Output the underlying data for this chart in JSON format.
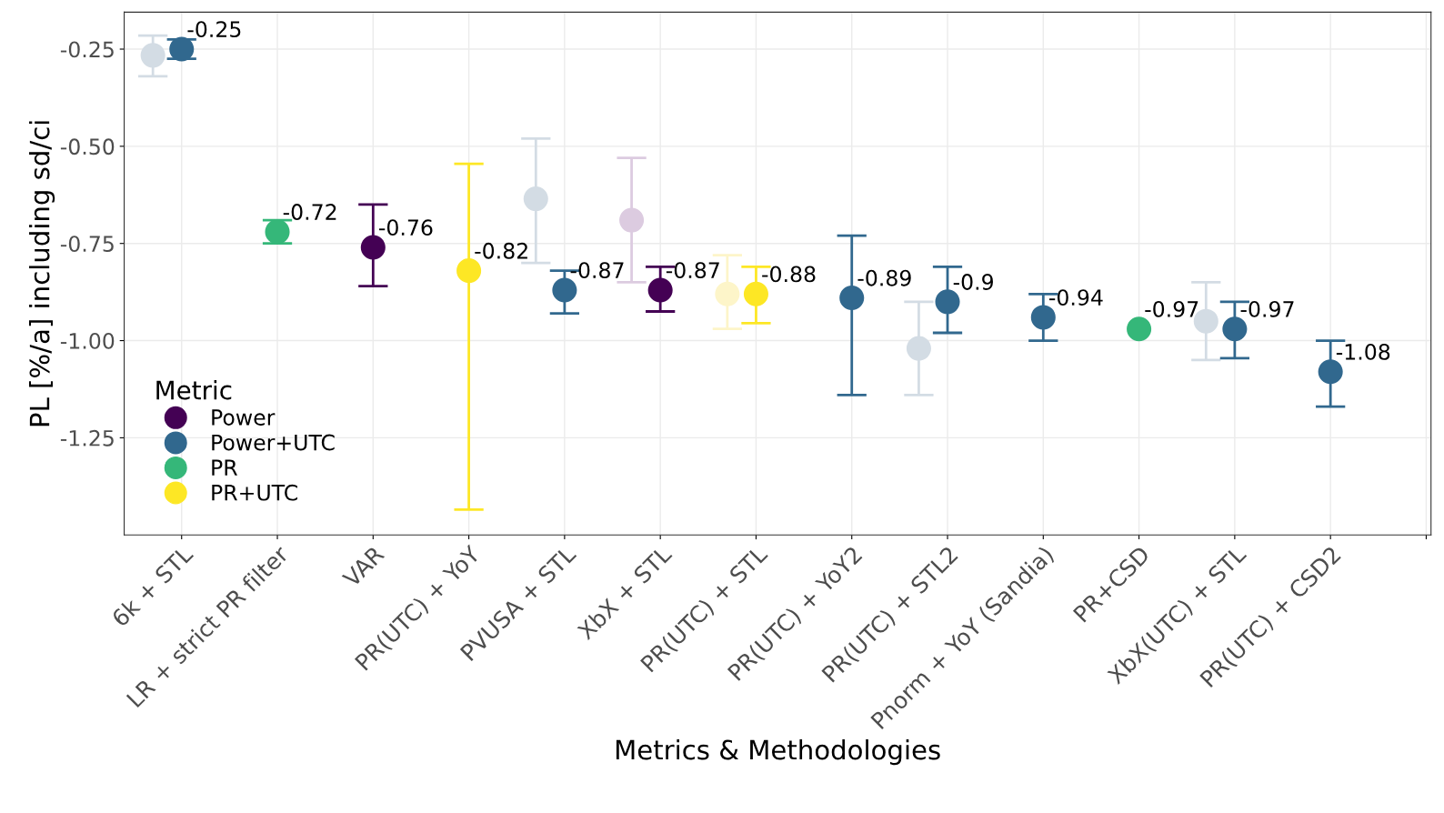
{
  "chart_data": {
    "type": "scatter",
    "xlabel": "Metrics & Methodologies",
    "ylabel": "PL [%/a] including sd/ci",
    "legend_title": "Metric",
    "legend": "bottom left",
    "grid": true,
    "marker": "circle",
    "categories": [
      "6k + STL",
      "LR + strict PR filter",
      "VAR",
      "PR(UTC) + YoY",
      "PVUSA + STL",
      "XbX + STL",
      "PR(UTC) + STL",
      "PR(UTC) + YoY2",
      "PR(UTC) + STL2",
      "Pnorm + YoY (Sandia)",
      "PR+CSD",
      "XbX(UTC) + STL",
      "PR(UTC) + CSD2",
      null
    ],
    "ylim": [
      -1.5,
      -0.155
    ],
    "yticks": [
      {
        "value": -0.25,
        "label": "-0.25"
      },
      {
        "value": -0.5,
        "label": "-0.50"
      },
      {
        "value": -0.75,
        "label": "-0.75"
      },
      {
        "value": -1.0,
        "label": "-1.00"
      },
      {
        "value": -1.25,
        "label": "-1.25"
      }
    ],
    "series": [
      {
        "colors": [
          "#d3dce4",
          null,
          null,
          null,
          "#d3dce4",
          "#dccbe0",
          "#fdf5c9",
          null,
          "#d3dce4",
          null,
          null,
          "#d3dce4",
          null,
          null
        ],
        "values": [
          -0.266,
          null,
          null,
          null,
          -0.635,
          -0.69,
          -0.88,
          null,
          -1.02,
          null,
          null,
          -0.95,
          null,
          null
        ],
        "errors": [
          [
            -0.32,
            -0.215
          ],
          null,
          null,
          null,
          [
            -0.8,
            -0.48
          ],
          [
            -0.85,
            -0.53
          ],
          [
            -0.97,
            -0.78
          ],
          null,
          [
            -1.14,
            -0.9
          ],
          null,
          null,
          [
            -1.05,
            -0.85
          ],
          null,
          null
        ]
      },
      {
        "name": "Power",
        "color": "#440154",
        "values": [
          null,
          null,
          -0.76,
          null,
          null,
          -0.87,
          null,
          null,
          null,
          null,
          null,
          null,
          null,
          null
        ],
        "errors": [
          null,
          null,
          [
            -0.86,
            -0.65
          ],
          null,
          null,
          [
            -0.925,
            -0.81
          ],
          null,
          null,
          null,
          null,
          null,
          null,
          null,
          null
        ],
        "value_labels": [
          null,
          null,
          "-0.76",
          null,
          null,
          "-0.87",
          null,
          null,
          null,
          null,
          null,
          null,
          null,
          null
        ]
      },
      {
        "name": "Power+UTC",
        "color": "#31688e",
        "values": [
          -0.25,
          null,
          null,
          null,
          -0.87,
          null,
          null,
          -0.89,
          -0.9,
          -0.94,
          null,
          -0.97,
          -1.08,
          null
        ],
        "errors": [
          [
            -0.275,
            -0.225
          ],
          null,
          null,
          null,
          [
            -0.93,
            -0.82
          ],
          null,
          null,
          [
            -1.14,
            -0.73
          ],
          [
            -0.98,
            -0.81
          ],
          [
            -1.0,
            -0.88
          ],
          null,
          [
            -1.045,
            -0.9
          ],
          [
            -1.17,
            -1.0
          ],
          null
        ],
        "value_labels": [
          "-0.25",
          null,
          null,
          null,
          "-0.87",
          null,
          null,
          "-0.89",
          "-0.9",
          "-0.94",
          null,
          "-0.97",
          "-1.08",
          null
        ]
      },
      {
        "name": "PR",
        "color": "#35b779",
        "values": [
          null,
          -0.72,
          null,
          null,
          null,
          null,
          null,
          null,
          null,
          null,
          -0.97,
          null,
          null,
          null
        ],
        "errors": [
          null,
          [
            -0.75,
            -0.69
          ],
          null,
          null,
          null,
          null,
          null,
          null,
          null,
          null,
          null,
          null,
          null,
          null
        ],
        "value_labels": [
          null,
          "-0.72",
          null,
          null,
          null,
          null,
          null,
          null,
          null,
          null,
          "-0.97",
          null,
          null,
          null
        ]
      },
      {
        "name": "PR+UTC",
        "color": "#fde725",
        "values": [
          null,
          null,
          null,
          -0.82,
          null,
          null,
          -0.88,
          null,
          null,
          null,
          null,
          null,
          null,
          null
        ],
        "errors": [
          null,
          null,
          null,
          [
            -1.435,
            -0.545
          ],
          null,
          null,
          [
            -0.955,
            -0.81
          ],
          null,
          null,
          null,
          null,
          null,
          null,
          null
        ],
        "value_labels": [
          null,
          null,
          null,
          "-0.82",
          null,
          null,
          "-0.88",
          null,
          null,
          null,
          null,
          null,
          null,
          null
        ]
      }
    ]
  }
}
